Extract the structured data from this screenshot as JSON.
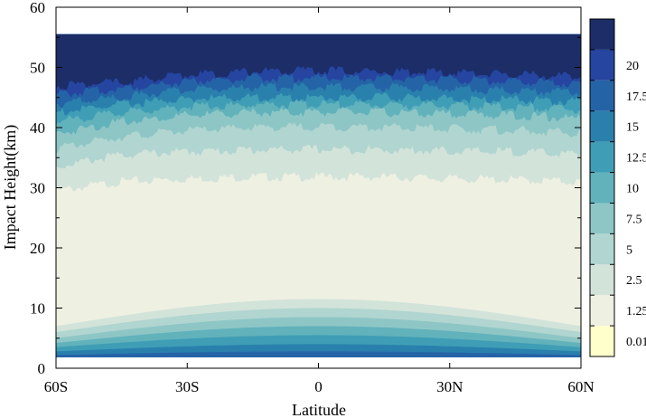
{
  "chart_data": {
    "type": "heatmap",
    "title": "",
    "xlabel": "Latitude",
    "ylabel": "Impact Height(km)",
    "xlim": [
      -60,
      60
    ],
    "ylim": [
      0,
      60
    ],
    "x_ticks": [
      {
        "value": -60,
        "label": "60S"
      },
      {
        "value": -30,
        "label": "30S"
      },
      {
        "value": 0,
        "label": "0"
      },
      {
        "value": 30,
        "label": "30N"
      },
      {
        "value": 60,
        "label": "60N"
      }
    ],
    "y_ticks": [
      0,
      10,
      20,
      30,
      40,
      50,
      60
    ],
    "colorbar": {
      "levels": [
        {
          "label": "0.01",
          "color": "#ffffcc"
        },
        {
          "label": "1.25",
          "color": "#eef0e2"
        },
        {
          "label": "2.5",
          "color": "#d2e3da"
        },
        {
          "label": "5",
          "color": "#b1d5d0"
        },
        {
          "label": "7.5",
          "color": "#8ec6c6"
        },
        {
          "label": "10",
          "color": "#62b2bc"
        },
        {
          "label": "12.5",
          "color": "#3f9eb5"
        },
        {
          "label": "15",
          "color": "#2a80ad"
        },
        {
          "label": "17.5",
          "color": "#2563a7"
        },
        {
          "label": "20",
          "color": "#2545a0"
        },
        {
          "label": "",
          "color": "#1c2d68"
        }
      ]
    },
    "upper_band_bottom_km": {
      "latitudes": [
        -60,
        -45,
        -30,
        -15,
        0,
        15,
        30,
        45,
        60
      ],
      "levels": [
        "2.5",
        "5",
        "7.5",
        "10",
        "12.5",
        "15",
        "17.5",
        "20",
        ">20"
      ],
      "heights": [
        [
          29.5,
          31.0,
          31.5,
          31.8,
          31.8,
          31.8,
          31.5,
          31.3,
          31.0
        ],
        [
          33.5,
          35.5,
          36.0,
          36.3,
          36.4,
          36.3,
          36.1,
          36.0,
          35.5
        ],
        [
          36.5,
          38.5,
          39.5,
          40.0,
          40.2,
          40.0,
          39.8,
          39.5,
          39.0
        ],
        [
          39.0,
          41.0,
          42.0,
          42.5,
          42.6,
          42.5,
          42.3,
          42.0,
          41.5
        ],
        [
          41.0,
          42.5,
          43.5,
          43.8,
          43.9,
          43.8,
          43.6,
          43.4,
          43.0
        ],
        [
          42.5,
          43.8,
          44.8,
          45.0,
          45.0,
          45.0,
          44.8,
          44.6,
          44.3
        ],
        [
          44.0,
          45.0,
          46.3,
          46.7,
          46.8,
          46.7,
          46.5,
          46.2,
          45.8
        ],
        [
          45.5,
          46.5,
          47.7,
          48.2,
          48.3,
          48.2,
          48.0,
          47.7,
          47.3
        ],
        [
          47.0,
          47.5,
          48.8,
          49.3,
          49.5,
          49.3,
          49.1,
          48.8,
          48.5
        ]
      ],
      "top_km": 55.5
    },
    "lower_band": {
      "bottom_km": 1.8,
      "levels": [
        "2.5",
        "5",
        "7.5",
        "10",
        "12.5",
        "15",
        "17.5"
      ],
      "top_km_equator": [
        11.5,
        10.0,
        8.5,
        7.0,
        5.5,
        4.0,
        2.8
      ],
      "top_km_60deg": [
        7.0,
        6.0,
        5.0,
        4.2,
        3.5,
        2.8,
        2.2
      ]
    }
  }
}
